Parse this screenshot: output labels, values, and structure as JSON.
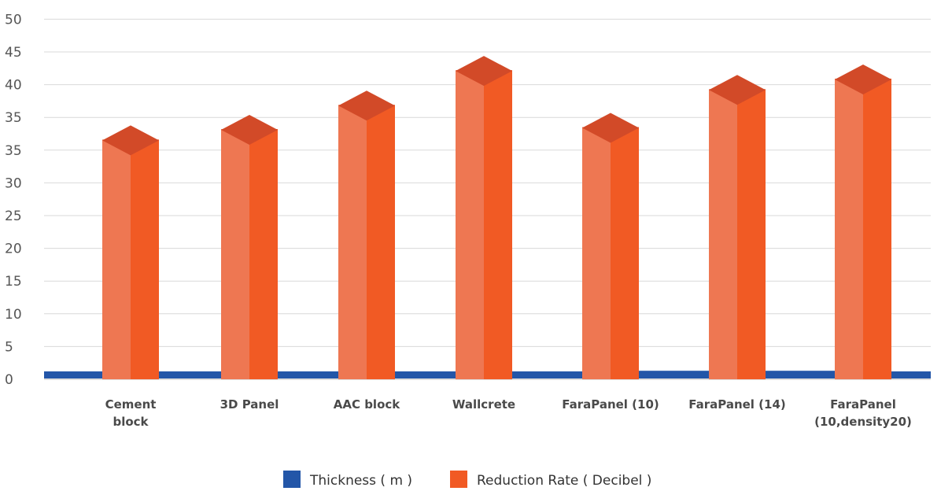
{
  "chart_data": {
    "type": "bar",
    "title": "",
    "xlabel": "",
    "ylabel": "",
    "y_tick_labels": [
      "0",
      "5",
      "10",
      "15",
      "20",
      "25",
      "30",
      "35",
      "35",
      "40",
      "45",
      "50"
    ],
    "categories": [
      [
        "Cement",
        "block"
      ],
      [
        "3D Panel"
      ],
      [
        "AAC block"
      ],
      [
        "Wallcrete"
      ],
      [
        "FaraPanel (10)"
      ],
      [
        "FaraPanel (14)"
      ],
      [
        "FaraPanel",
        "(10,density20)"
      ]
    ],
    "series": [
      {
        "name": "Thickness ( m )",
        "color": "#2356a8",
        "style": "band",
        "values": [
          0.2,
          0.2,
          0.2,
          0.2,
          0.2,
          0.22,
          0.22
        ]
      },
      {
        "name": "Reduction Rate ( Decibel )",
        "color": "#f15a24",
        "style": "3d-column",
        "values": [
          36.5,
          38.1,
          41.8,
          47.1,
          38.4,
          44.2,
          45.8
        ]
      }
    ],
    "legend_position": "bottom",
    "grid": true
  }
}
